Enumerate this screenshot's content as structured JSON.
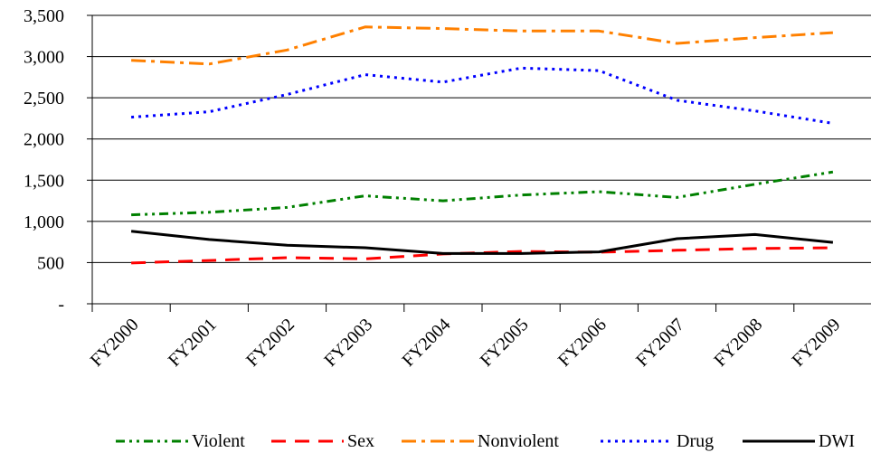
{
  "chart_data": {
    "type": "line",
    "title": "",
    "xlabel": "",
    "ylabel": "",
    "categories": [
      "FY2000",
      "FY2001",
      "FY2002",
      "FY2003",
      "FY2004",
      "FY2005",
      "FY2006",
      "FY2007",
      "FY2008",
      "FY2009"
    ],
    "ylim": [
      0,
      3500
    ],
    "yticks": [
      0,
      500,
      1000,
      1500,
      2000,
      2500,
      3000,
      3500
    ],
    "ytick_labels": [
      "-",
      "500",
      "1,000",
      "1,500",
      "2,000",
      "2,500",
      "3,000",
      "3,500"
    ],
    "grid": "horizontal",
    "legend_position": "bottom",
    "series": [
      {
        "name": "Violent",
        "color": "#008000",
        "dash": "dash-dot-dot",
        "values": [
          1080,
          1110,
          1170,
          1310,
          1250,
          1320,
          1360,
          1290,
          1450,
          1600
        ]
      },
      {
        "name": "Sex",
        "color": "#ff0000",
        "dash": "long-dash",
        "values": [
          495,
          525,
          560,
          545,
          605,
          635,
          625,
          650,
          670,
          680
        ]
      },
      {
        "name": "Nonviolent",
        "color": "#ff8000",
        "dash": "long-dash-dot",
        "values": [
          2955,
          2910,
          3080,
          3360,
          3340,
          3310,
          3310,
          3160,
          3230,
          3290
        ]
      },
      {
        "name": "Drug",
        "color": "#0000ff",
        "dash": "dotted",
        "values": [
          2265,
          2330,
          2540,
          2780,
          2690,
          2860,
          2830,
          2470,
          2340,
          2190
        ]
      },
      {
        "name": "DWI",
        "color": "#000000",
        "dash": "solid",
        "values": [
          880,
          780,
          710,
          680,
          610,
          610,
          630,
          790,
          840,
          745
        ]
      }
    ]
  }
}
